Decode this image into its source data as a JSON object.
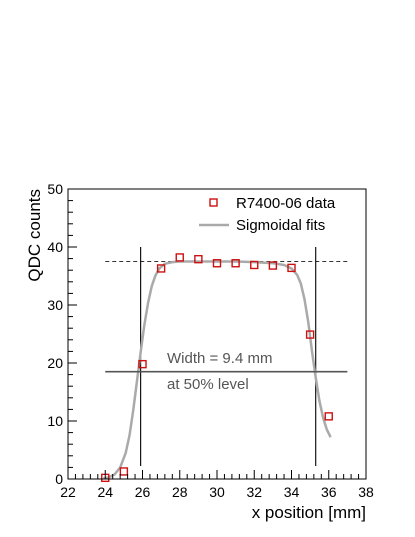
{
  "chart_data": {
    "type": "scatter",
    "xlabel": "x position [mm]",
    "ylabel": "QDC counts",
    "xlim": [
      22,
      38
    ],
    "ylim": [
      0,
      50
    ],
    "x_ticks": [
      "22",
      "24",
      "26",
      "28",
      "30",
      "32",
      "34",
      "36",
      "38"
    ],
    "y_ticks": [
      "0",
      "10",
      "20",
      "30",
      "40",
      "50"
    ],
    "grid": false,
    "legend_position": "top-right",
    "series": [
      {
        "name": "R7400-06 data",
        "kind": "markers",
        "marker": "open-square",
        "color": "#cc1111",
        "x": [
          24,
          25,
          26,
          27,
          28,
          29,
          30,
          31,
          32,
          33,
          34,
          35,
          36
        ],
        "y": [
          0.2,
          1.3,
          19.8,
          36.3,
          38.2,
          37.9,
          37.2,
          37.2,
          36.9,
          36.8,
          36.4,
          24.9,
          10.8
        ]
      },
      {
        "name": "Sigmoidal fits",
        "kind": "line",
        "color": "#aaaaaa",
        "x": [
          23.9,
          24.2,
          24.5,
          24.8,
          25.1,
          25.3,
          25.5,
          25.7,
          25.9,
          26.1,
          26.3,
          26.5,
          26.7,
          26.9,
          27.2,
          27.6,
          28.0,
          29.0,
          30.0,
          31.0,
          32.0,
          33.0,
          33.6,
          34.0,
          34.3,
          34.5,
          34.7,
          34.9,
          35.1,
          35.3,
          35.5,
          35.7,
          35.9,
          36.1
        ],
        "y": [
          0.1,
          0.3,
          0.8,
          2.0,
          4.5,
          7.5,
          11.8,
          16.8,
          21.8,
          26.6,
          30.4,
          33.3,
          35.1,
          36.3,
          37.1,
          37.4,
          37.5,
          37.5,
          37.5,
          37.5,
          37.4,
          37.2,
          36.9,
          36.3,
          35.2,
          33.7,
          31.0,
          27.0,
          22.0,
          17.5,
          13.5,
          10.5,
          8.5,
          7.2
        ]
      }
    ],
    "plateau_level": 37.5,
    "half_level": 18.5,
    "width_markers_x": [
      25.9,
      35.3
    ],
    "width_line_x": [
      24.0,
      37.0
    ],
    "annotation_lines": [
      "Width = 9.4 mm",
      "at 50% level"
    ]
  }
}
